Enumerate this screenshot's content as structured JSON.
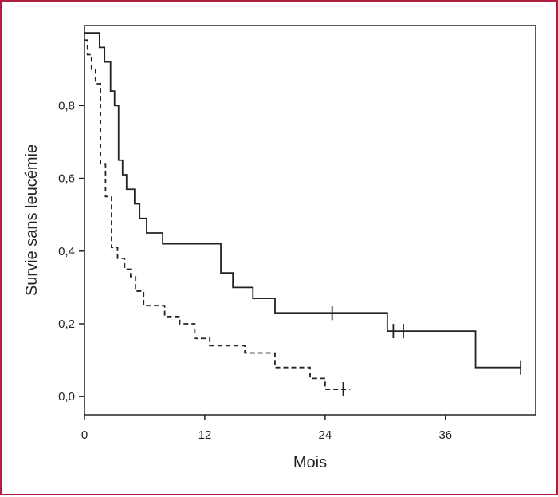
{
  "chart_data": {
    "type": "line",
    "xlabel": "Mois",
    "ylabel": "Survie sans leucémie",
    "xlim": [
      0,
      45
    ],
    "ylim": [
      -0.05,
      1.02
    ],
    "x_ticks": [
      0,
      12,
      24,
      36
    ],
    "x_tick_labels": [
      "0",
      "12",
      "24",
      "36"
    ],
    "y_ticks": [
      0.0,
      0.2,
      0.4,
      0.6,
      0.8
    ],
    "y_tick_labels": [
      "0,0",
      "0,2",
      "0,4",
      "0,6",
      "0,8"
    ],
    "grid": false,
    "legend": "none",
    "series": [
      {
        "style": "solid",
        "color": "#222222",
        "x": [
          0,
          1.5,
          2.0,
          2.6,
          3.0,
          3.4,
          3.8,
          4.2,
          5.0,
          5.5,
          6.2,
          7.8,
          8.4,
          13.6,
          14.8,
          16.8,
          19.0,
          30.2,
          39.0,
          43.5
        ],
        "y": [
          1.0,
          0.96,
          0.92,
          0.84,
          0.8,
          0.65,
          0.61,
          0.57,
          0.53,
          0.49,
          0.45,
          0.42,
          0.42,
          0.34,
          0.3,
          0.27,
          0.23,
          0.18,
          0.08,
          0.08
        ],
        "censor_x": [
          24.7,
          30.8,
          31.8,
          43.5
        ],
        "censor_y": [
          0.23,
          0.18,
          0.18,
          0.08
        ]
      },
      {
        "style": "dashed",
        "color": "#222222",
        "x": [
          0,
          0.3,
          0.7,
          1.1,
          1.6,
          2.1,
          2.7,
          3.3,
          4.0,
          4.6,
          5.1,
          5.9,
          8.0,
          9.5,
          11.0,
          12.5,
          16.0,
          19.0,
          22.5,
          24.0,
          26.5
        ],
        "y": [
          0.98,
          0.94,
          0.9,
          0.86,
          0.64,
          0.55,
          0.41,
          0.38,
          0.35,
          0.33,
          0.29,
          0.25,
          0.22,
          0.2,
          0.16,
          0.14,
          0.12,
          0.08,
          0.05,
          0.02,
          0.02
        ],
        "censor_x": [
          25.8
        ],
        "censor_y": [
          0.02
        ]
      }
    ]
  }
}
